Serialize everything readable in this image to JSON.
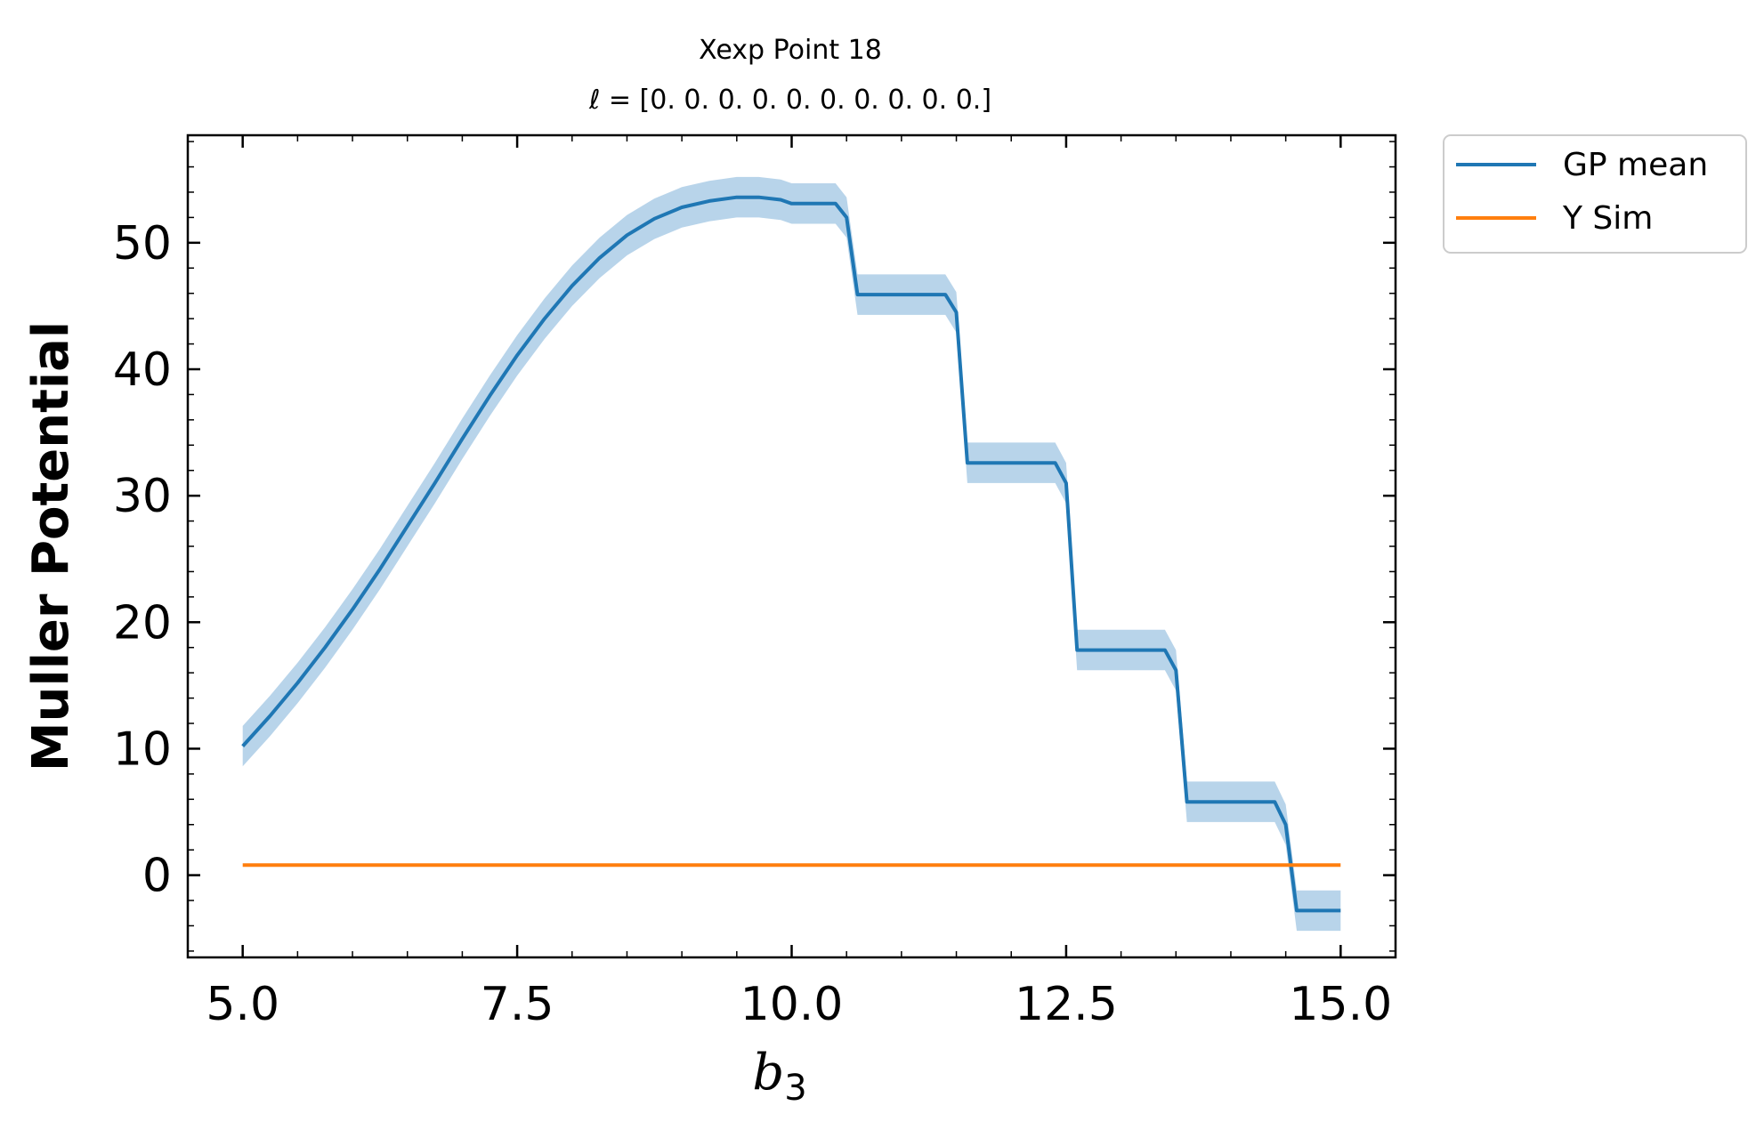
{
  "chart_data": {
    "type": "line",
    "title": "Xexp Point 18",
    "subtitle": "ℓ = [0. 0. 0. 0. 0. 0. 0. 0. 0. 0.]",
    "xlabel": "b",
    "xlabel_subscript": "3",
    "ylabel": "Muller Potential",
    "xlim": [
      4.5,
      15.5
    ],
    "ylim": [
      -6.5,
      58.5
    ],
    "xticks": [
      5.0,
      7.5,
      10.0,
      12.5,
      15.0
    ],
    "xtick_labels": [
      "5.0",
      "7.5",
      "10.0",
      "12.5",
      "15.0"
    ],
    "yticks": [
      0,
      10,
      20,
      30,
      40,
      50
    ],
    "ytick_labels": [
      "0",
      "10",
      "20",
      "30",
      "40",
      "50"
    ],
    "grid": false,
    "legend_position": "outside-top-right",
    "series": [
      {
        "name": "GP mean",
        "color": "#1f77b4",
        "band_color": "#b8d4ea",
        "band_halfwidth": 1.6,
        "x": [
          5.0,
          5.25,
          5.5,
          5.75,
          6.0,
          6.25,
          6.5,
          6.75,
          7.0,
          7.25,
          7.5,
          7.75,
          8.0,
          8.25,
          8.5,
          8.75,
          9.0,
          9.25,
          9.5,
          9.7,
          9.9,
          10.0,
          10.1,
          10.4,
          10.5,
          10.6,
          11.4,
          11.5,
          11.6,
          12.4,
          12.5,
          12.6,
          13.4,
          13.5,
          13.6,
          14.4,
          14.5,
          14.6,
          15.0
        ],
        "y": [
          10.2,
          12.6,
          15.2,
          18.0,
          21.0,
          24.2,
          27.6,
          31.0,
          34.5,
          37.9,
          41.1,
          44.0,
          46.6,
          48.8,
          50.6,
          51.9,
          52.8,
          53.3,
          53.6,
          53.6,
          53.4,
          53.1,
          53.1,
          53.1,
          52.0,
          45.9,
          45.9,
          44.5,
          32.6,
          32.6,
          31.0,
          17.8,
          17.8,
          16.2,
          5.8,
          5.8,
          4.0,
          -2.8,
          -2.8
        ]
      },
      {
        "name": "Y Sim",
        "color": "#ff7f0e",
        "x": [
          5.0,
          15.0
        ],
        "y": [
          0.8,
          0.8
        ]
      }
    ]
  }
}
